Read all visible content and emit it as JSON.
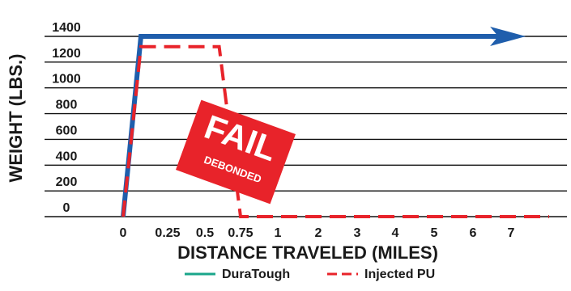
{
  "chart_data": {
    "type": "line",
    "xlabel": "DISTANCE TRAVELED (MILES)",
    "ylabel": "WEIGHT (LBS.)",
    "x_tick_labels": [
      "0",
      "0.25",
      "0.5",
      "0.75",
      "1",
      "2",
      "3",
      "4",
      "5",
      "6",
      "7"
    ],
    "y_tick_labels": [
      "1400",
      "1200",
      "1000",
      "800",
      "600",
      "400",
      "200",
      "0"
    ],
    "ylim": [
      0,
      1400
    ],
    "grid": "horizontal",
    "legend_position": "bottom-center",
    "series": [
      {
        "name": "DuraTough",
        "color": "#1f5eac",
        "legend_color": "#1aa68a",
        "style": "solid-arrow",
        "points": [
          [
            0,
            0
          ],
          [
            0.1,
            1400
          ],
          [
            7.3,
            1400
          ]
        ]
      },
      {
        "name": "Injected PU",
        "color": "#e8232a",
        "style": "dashed",
        "points": [
          [
            0,
            0
          ],
          [
            0.1,
            1320
          ],
          [
            0.6,
            1320
          ],
          [
            0.75,
            0
          ],
          [
            8,
            0
          ]
        ]
      }
    ],
    "annotation": {
      "main": "FAIL",
      "sub": "DEBONDED",
      "color": "#e8232a",
      "rotation_deg": 20
    }
  }
}
